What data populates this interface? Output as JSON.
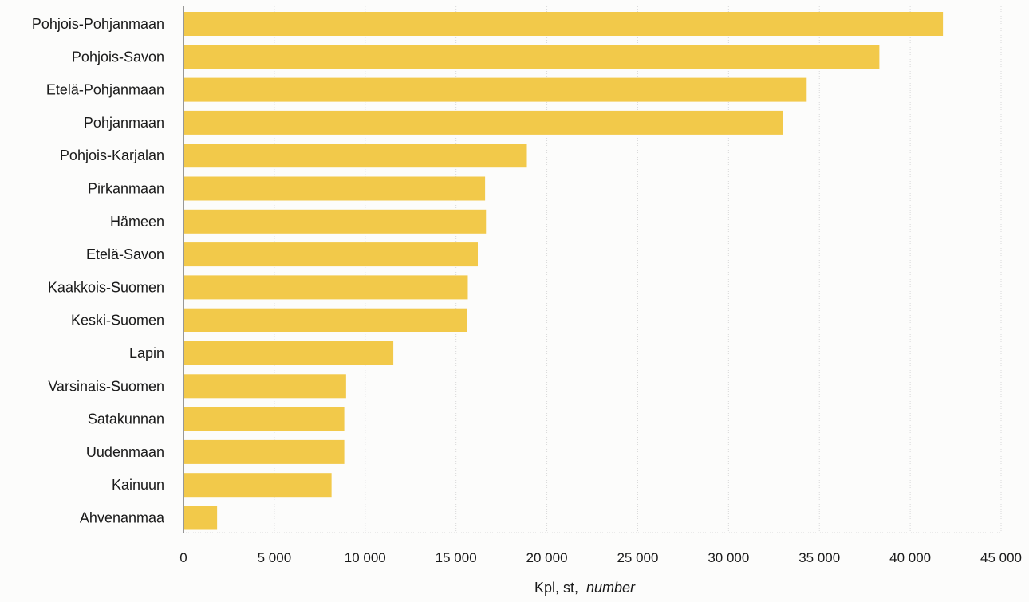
{
  "chart_data": {
    "type": "bar",
    "orientation": "horizontal",
    "categories": [
      "Pohjois-Pohjanmaan",
      "Pohjois-Savon",
      "Etelä-Pohjanmaan",
      "Pohjanmaan",
      "Pohjois-Karjalan",
      "Pirkanmaan",
      "Hämeen",
      "Etelä-Savon",
      "Kaakkois-Suomen",
      "Keski-Suomen",
      "Lapin",
      "Varsinais-Suomen",
      "Satakunnan",
      "Uudenmaan",
      "Kainuun",
      "Ahvenanmaa"
    ],
    "values": [
      41800,
      38300,
      34300,
      33000,
      18900,
      16600,
      16650,
      16200,
      15650,
      15600,
      11550,
      8950,
      8850,
      8850,
      8150,
      1850
    ],
    "title": "",
    "xlabel": "Kpl, st,",
    "xlabel_italic": "number",
    "ylabel": "",
    "xlim": [
      0,
      45000
    ],
    "x_ticks": [
      0,
      5000,
      10000,
      15000,
      20000,
      25000,
      30000,
      35000,
      40000,
      45000
    ],
    "x_tick_labels": [
      "0",
      "5 000",
      "10 000",
      "15 000",
      "20 000",
      "25 000",
      "30 000",
      "35 000",
      "40 000",
      "45 000"
    ],
    "grid": "vertical gridlines",
    "legend": "none",
    "bar_color": "#f2c94a",
    "grid_color": "#d9d9d9",
    "axis_color": "#555555"
  }
}
